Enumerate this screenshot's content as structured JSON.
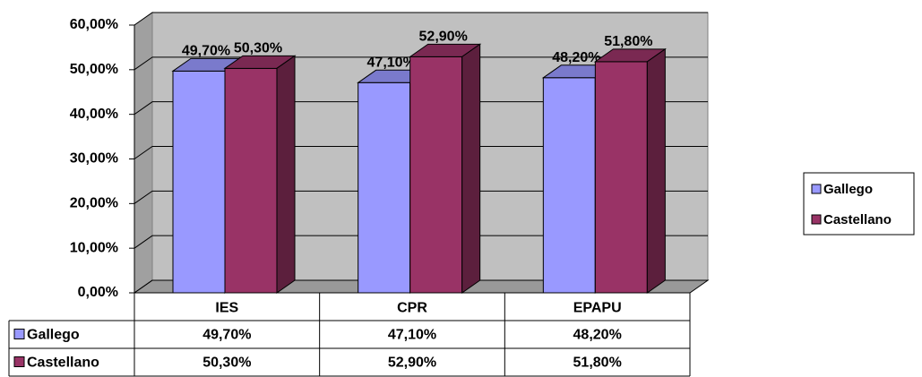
{
  "chart_data": {
    "type": "bar3d",
    "categories": [
      "IES",
      "CPR",
      "EPAPU"
    ],
    "series": [
      {
        "name": "Gallego",
        "color": "#9999ff",
        "values": [
          49.7,
          47.1,
          48.2
        ],
        "value_labels": [
          "49,70%",
          "47,10%",
          "48,20%"
        ]
      },
      {
        "name": "Castellano",
        "color": "#993366",
        "values": [
          50.3,
          52.9,
          51.8
        ],
        "value_labels": [
          "50,30%",
          "52,90%",
          "51,80%"
        ]
      }
    ],
    "ylim": [
      0,
      60
    ],
    "yticks": [
      {
        "value": 0,
        "label": "0,00%"
      },
      {
        "value": 10,
        "label": "10,00%"
      },
      {
        "value": 20,
        "label": "20,00%"
      },
      {
        "value": 30,
        "label": "30,00%"
      },
      {
        "value": 40,
        "label": "40,00%"
      },
      {
        "value": 50,
        "label": "50,00%"
      },
      {
        "value": 60,
        "label": "60,00%"
      }
    ],
    "grid": true,
    "legend": "right",
    "data_table": true
  }
}
